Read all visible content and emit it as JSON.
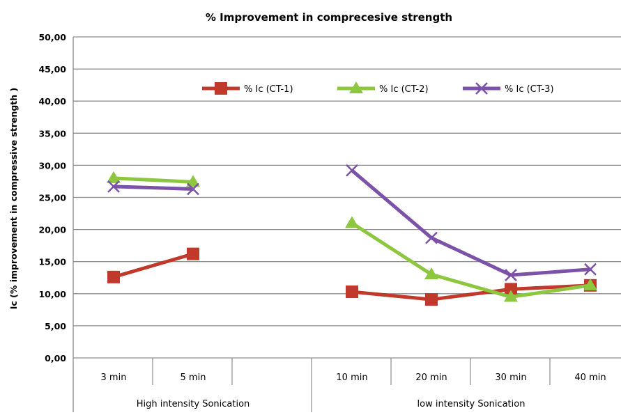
{
  "chart_data": {
    "type": "line",
    "title": "% Improvement in comprecesive strength",
    "xlabel": "",
    "ylabel": "Ic (% improvement in compressive strength )",
    "ylim": [
      0,
      50
    ],
    "y_ticks": [
      "0,00",
      "5,00",
      "10,00",
      "15,00",
      "20,00",
      "25,00",
      "30,00",
      "35,00",
      "40,00",
      "45,00",
      "50,00"
    ],
    "categories": [
      "3 min",
      "5 min",
      "",
      "10 min",
      "20 min",
      "30 min",
      "40 min"
    ],
    "groups": [
      {
        "label": "High intensity Sonication",
        "span": [
          0,
          2
        ]
      },
      {
        "label": "low intensity Sonication",
        "span": [
          3,
          6
        ]
      }
    ],
    "grid": true,
    "legend_position": "top-center",
    "series": [
      {
        "name": "% Ic (CT-1)",
        "color": "#c0392b",
        "marker": "square",
        "values": [
          12.6,
          16.2,
          null,
          10.3,
          9.1,
          10.7,
          11.3
        ]
      },
      {
        "name": "% Ic (CT-2)",
        "color": "#8dc63f",
        "marker": "triangle",
        "values": [
          28.0,
          27.4,
          null,
          21.0,
          13.0,
          9.5,
          11.3
        ]
      },
      {
        "name": "% Ic (CT-3)",
        "color": "#7b52a8",
        "marker": "x",
        "values": [
          26.7,
          26.3,
          null,
          29.2,
          18.7,
          12.9,
          13.8
        ]
      }
    ]
  }
}
